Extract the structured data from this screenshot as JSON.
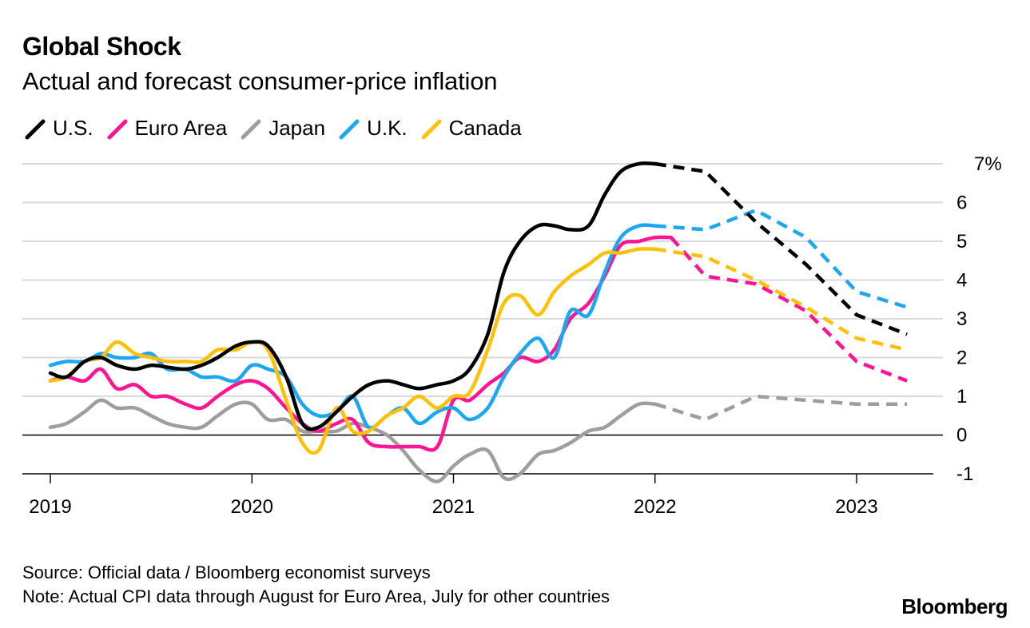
{
  "title": "Global Shock",
  "subtitle": "Actual and forecast consumer-price inflation",
  "chart_data": {
    "type": "line",
    "title": "Global Shock",
    "subtitle": "Actual and forecast consumer-price inflation",
    "ylim": [
      -1,
      7
    ],
    "xlim": [
      2019,
      2023.35
    ],
    "y_ticks": [
      -1,
      0,
      1,
      2,
      3,
      4,
      5,
      6,
      7
    ],
    "y_tick_labels": [
      "-1",
      "0",
      "1",
      "2",
      "3",
      "4",
      "5",
      "6",
      "7%"
    ],
    "x_ticks": [
      2019,
      2020,
      2021,
      2022,
      2023
    ],
    "x_tick_labels": [
      "2019",
      "2020",
      "2021",
      "2022",
      "2023"
    ],
    "grid": true,
    "legend_position": "top-left",
    "series": [
      {
        "name": "U.S.",
        "color": "#000000",
        "actual": [
          [
            2019.0,
            1.6
          ],
          [
            2019.08,
            1.5
          ],
          [
            2019.17,
            1.9
          ],
          [
            2019.25,
            2.0
          ],
          [
            2019.33,
            1.8
          ],
          [
            2019.42,
            1.7
          ],
          [
            2019.5,
            1.8
          ],
          [
            2019.58,
            1.75
          ],
          [
            2019.67,
            1.7
          ],
          [
            2019.75,
            1.8
          ],
          [
            2019.83,
            2.0
          ],
          [
            2019.92,
            2.3
          ],
          [
            2020.0,
            2.4
          ],
          [
            2020.08,
            2.3
          ],
          [
            2020.17,
            1.5
          ],
          [
            2020.25,
            0.3
          ],
          [
            2020.33,
            0.2
          ],
          [
            2020.42,
            0.6
          ],
          [
            2020.5,
            1.0
          ],
          [
            2020.58,
            1.3
          ],
          [
            2020.67,
            1.4
          ],
          [
            2020.75,
            1.3
          ],
          [
            2020.83,
            1.2
          ],
          [
            2020.92,
            1.3
          ],
          [
            2021.0,
            1.4
          ],
          [
            2021.08,
            1.7
          ],
          [
            2021.17,
            2.6
          ],
          [
            2021.25,
            4.2
          ],
          [
            2021.33,
            5.0
          ],
          [
            2021.42,
            5.4
          ],
          [
            2021.5,
            5.4
          ],
          [
            2021.58,
            5.3
          ],
          [
            2021.67,
            5.4
          ],
          [
            2021.75,
            6.2
          ],
          [
            2021.83,
            6.8
          ],
          [
            2021.92,
            7.0
          ],
          [
            2022.0,
            7.0
          ]
        ],
        "forecast": [
          [
            2022.0,
            7.0
          ],
          [
            2022.25,
            6.8
          ],
          [
            2022.5,
            5.5
          ],
          [
            2022.75,
            4.4
          ],
          [
            2023.0,
            3.1
          ],
          [
            2023.25,
            2.6
          ]
        ]
      },
      {
        "name": "Euro Area",
        "color": "#FF1493",
        "actual": [
          [
            2019.0,
            1.4
          ],
          [
            2019.08,
            1.5
          ],
          [
            2019.17,
            1.4
          ],
          [
            2019.25,
            1.7
          ],
          [
            2019.33,
            1.2
          ],
          [
            2019.42,
            1.3
          ],
          [
            2019.5,
            1.0
          ],
          [
            2019.58,
            1.0
          ],
          [
            2019.67,
            0.8
          ],
          [
            2019.75,
            0.7
          ],
          [
            2019.83,
            1.0
          ],
          [
            2019.92,
            1.3
          ],
          [
            2020.0,
            1.4
          ],
          [
            2020.08,
            1.2
          ],
          [
            2020.17,
            0.7
          ],
          [
            2020.25,
            0.3
          ],
          [
            2020.33,
            0.1
          ],
          [
            2020.42,
            0.3
          ],
          [
            2020.5,
            0.4
          ],
          [
            2020.58,
            -0.2
          ],
          [
            2020.67,
            -0.3
          ],
          [
            2020.75,
            -0.3
          ],
          [
            2020.83,
            -0.3
          ],
          [
            2020.92,
            -0.3
          ],
          [
            2021.0,
            0.9
          ],
          [
            2021.08,
            0.9
          ],
          [
            2021.17,
            1.3
          ],
          [
            2021.25,
            1.6
          ],
          [
            2021.33,
            2.0
          ],
          [
            2021.42,
            1.9
          ],
          [
            2021.5,
            2.2
          ],
          [
            2021.58,
            3.0
          ],
          [
            2021.67,
            3.4
          ],
          [
            2021.75,
            4.1
          ],
          [
            2021.83,
            4.9
          ],
          [
            2021.92,
            5.0
          ],
          [
            2022.0,
            5.1
          ],
          [
            2022.08,
            5.1
          ]
        ],
        "forecast": [
          [
            2022.08,
            5.1
          ],
          [
            2022.25,
            4.1
          ],
          [
            2022.5,
            3.9
          ],
          [
            2022.75,
            3.2
          ],
          [
            2023.0,
            1.9
          ],
          [
            2023.25,
            1.4
          ]
        ]
      },
      {
        "name": "Japan",
        "color": "#9E9E9E",
        "actual": [
          [
            2019.0,
            0.2
          ],
          [
            2019.08,
            0.3
          ],
          [
            2019.17,
            0.6
          ],
          [
            2019.25,
            0.9
          ],
          [
            2019.33,
            0.7
          ],
          [
            2019.42,
            0.7
          ],
          [
            2019.5,
            0.5
          ],
          [
            2019.58,
            0.3
          ],
          [
            2019.67,
            0.2
          ],
          [
            2019.75,
            0.2
          ],
          [
            2019.83,
            0.5
          ],
          [
            2019.92,
            0.8
          ],
          [
            2020.0,
            0.8
          ],
          [
            2020.08,
            0.4
          ],
          [
            2020.17,
            0.4
          ],
          [
            2020.25,
            0.1
          ],
          [
            2020.33,
            0.1
          ],
          [
            2020.42,
            0.1
          ],
          [
            2020.5,
            0.3
          ],
          [
            2020.58,
            0.2
          ],
          [
            2020.67,
            0.0
          ],
          [
            2020.75,
            -0.4
          ],
          [
            2020.83,
            -0.9
          ],
          [
            2020.92,
            -1.2
          ],
          [
            2021.0,
            -0.8
          ],
          [
            2021.08,
            -0.5
          ],
          [
            2021.17,
            -0.4
          ],
          [
            2021.25,
            -1.1
          ],
          [
            2021.33,
            -1.0
          ],
          [
            2021.42,
            -0.5
          ],
          [
            2021.5,
            -0.4
          ],
          [
            2021.58,
            -0.2
          ],
          [
            2021.67,
            0.1
          ],
          [
            2021.75,
            0.2
          ],
          [
            2021.83,
            0.5
          ],
          [
            2021.92,
            0.8
          ],
          [
            2022.0,
            0.8
          ]
        ],
        "forecast": [
          [
            2022.0,
            0.8
          ],
          [
            2022.25,
            0.4
          ],
          [
            2022.5,
            1.0
          ],
          [
            2022.75,
            0.9
          ],
          [
            2023.0,
            0.8
          ],
          [
            2023.25,
            0.8
          ]
        ]
      },
      {
        "name": "U.K.",
        "color": "#1BA8F0",
        "actual": [
          [
            2019.0,
            1.8
          ],
          [
            2019.08,
            1.9
          ],
          [
            2019.17,
            1.9
          ],
          [
            2019.25,
            2.1
          ],
          [
            2019.33,
            2.0
          ],
          [
            2019.42,
            2.0
          ],
          [
            2019.5,
            2.1
          ],
          [
            2019.58,
            1.7
          ],
          [
            2019.67,
            1.7
          ],
          [
            2019.75,
            1.5
          ],
          [
            2019.83,
            1.5
          ],
          [
            2019.92,
            1.4
          ],
          [
            2020.0,
            1.8
          ],
          [
            2020.08,
            1.7
          ],
          [
            2020.17,
            1.5
          ],
          [
            2020.25,
            0.8
          ],
          [
            2020.33,
            0.5
          ],
          [
            2020.42,
            0.6
          ],
          [
            2020.5,
            1.0
          ],
          [
            2020.58,
            0.2
          ],
          [
            2020.67,
            0.5
          ],
          [
            2020.75,
            0.7
          ],
          [
            2020.83,
            0.3
          ],
          [
            2020.92,
            0.6
          ],
          [
            2021.0,
            0.7
          ],
          [
            2021.08,
            0.4
          ],
          [
            2021.17,
            0.7
          ],
          [
            2021.25,
            1.5
          ],
          [
            2021.33,
            2.1
          ],
          [
            2021.42,
            2.5
          ],
          [
            2021.5,
            2.0
          ],
          [
            2021.58,
            3.2
          ],
          [
            2021.67,
            3.1
          ],
          [
            2021.75,
            4.2
          ],
          [
            2021.83,
            5.1
          ],
          [
            2021.92,
            5.4
          ],
          [
            2022.0,
            5.4
          ]
        ],
        "forecast": [
          [
            2022.0,
            5.4
          ],
          [
            2022.25,
            5.3
          ],
          [
            2022.5,
            5.8
          ],
          [
            2022.75,
            5.1
          ],
          [
            2023.0,
            3.7
          ],
          [
            2023.25,
            3.3
          ]
        ]
      },
      {
        "name": "Canada",
        "color": "#FFC107",
        "actual": [
          [
            2019.0,
            1.4
          ],
          [
            2019.08,
            1.5
          ],
          [
            2019.17,
            1.9
          ],
          [
            2019.25,
            2.0
          ],
          [
            2019.33,
            2.4
          ],
          [
            2019.42,
            2.1
          ],
          [
            2019.5,
            2.0
          ],
          [
            2019.58,
            1.9
          ],
          [
            2019.67,
            1.9
          ],
          [
            2019.75,
            1.9
          ],
          [
            2019.83,
            2.2
          ],
          [
            2019.92,
            2.2
          ],
          [
            2020.0,
            2.4
          ],
          [
            2020.08,
            2.2
          ],
          [
            2020.17,
            0.9
          ],
          [
            2020.25,
            -0.2
          ],
          [
            2020.33,
            -0.4
          ],
          [
            2020.42,
            0.7
          ],
          [
            2020.5,
            0.1
          ],
          [
            2020.58,
            0.1
          ],
          [
            2020.67,
            0.5
          ],
          [
            2020.75,
            0.7
          ],
          [
            2020.83,
            1.0
          ],
          [
            2020.92,
            0.7
          ],
          [
            2021.0,
            1.0
          ],
          [
            2021.08,
            1.1
          ],
          [
            2021.17,
            2.2
          ],
          [
            2021.25,
            3.4
          ],
          [
            2021.33,
            3.6
          ],
          [
            2021.42,
            3.1
          ],
          [
            2021.5,
            3.7
          ],
          [
            2021.58,
            4.1
          ],
          [
            2021.67,
            4.4
          ],
          [
            2021.75,
            4.7
          ],
          [
            2021.83,
            4.7
          ],
          [
            2021.92,
            4.8
          ],
          [
            2022.0,
            4.8
          ]
        ],
        "forecast": [
          [
            2022.0,
            4.8
          ],
          [
            2022.25,
            4.6
          ],
          [
            2022.5,
            4.0
          ],
          [
            2022.75,
            3.3
          ],
          [
            2023.0,
            2.5
          ],
          [
            2023.25,
            2.2
          ]
        ]
      }
    ]
  },
  "footer": {
    "source": "Source: Official data / Bloomberg economist surveys",
    "note": "Note: Actual CPI data through August for Euro Area, July for other countries"
  },
  "brand": "Bloomberg"
}
